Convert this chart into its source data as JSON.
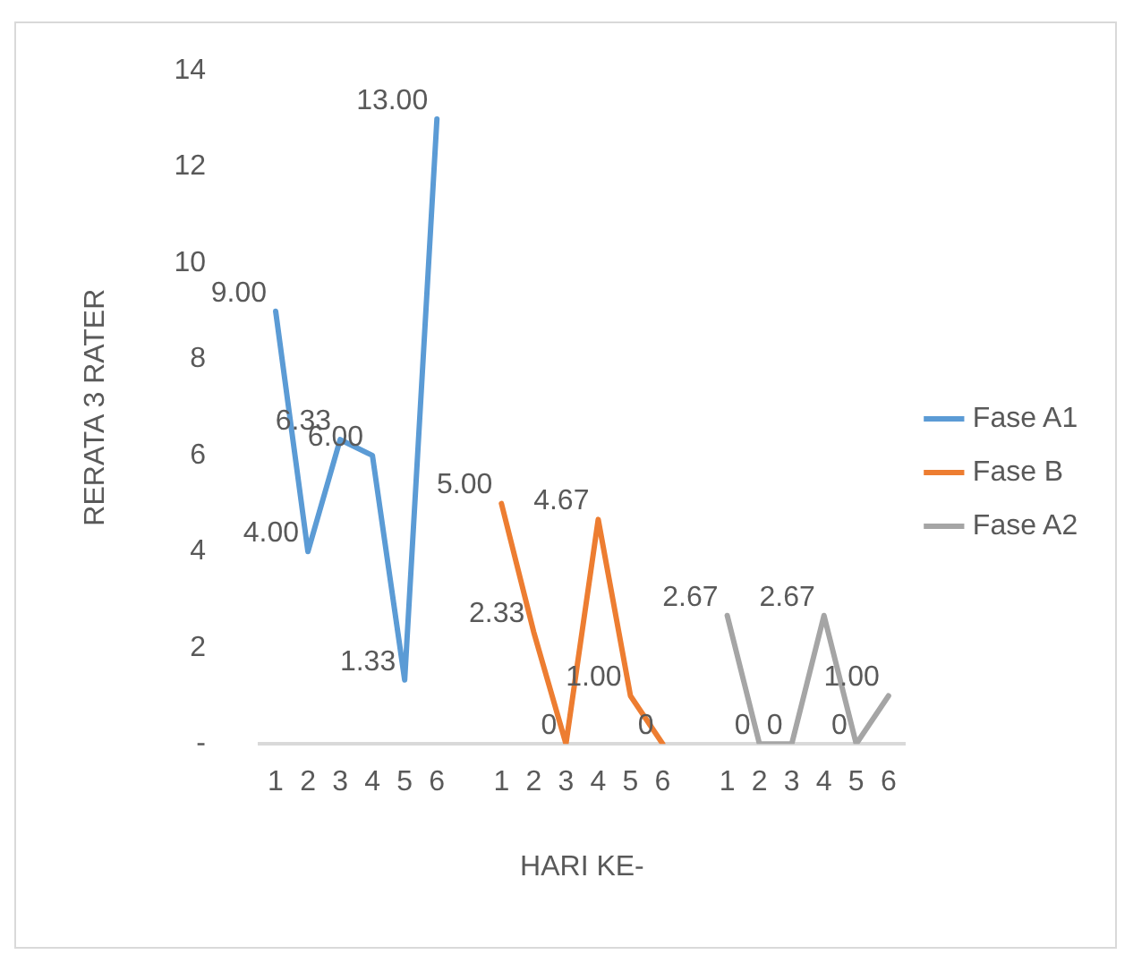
{
  "chart_data": {
    "type": "line",
    "xlabel": "HARI KE-",
    "ylabel": "RERATA 3 RATER",
    "categories": [
      "1",
      "2",
      "3",
      "4",
      "5",
      "6",
      null,
      "1",
      "2",
      "3",
      "4",
      "5",
      "6",
      null,
      "1",
      "2",
      "3",
      "4",
      "5",
      "6"
    ],
    "series": [
      {
        "name": "Fase A1",
        "color": "#5b9bd5",
        "values": [
          9,
          4,
          6.33,
          6,
          1.33,
          13,
          null,
          null,
          null,
          null,
          null,
          null,
          null,
          null,
          null,
          null,
          null,
          null,
          null,
          null
        ],
        "value_labels": [
          "9.00",
          "4.00",
          "6.33",
          "6.00",
          "1.33",
          "13.00",
          null,
          null,
          null,
          null,
          null,
          null,
          null,
          null,
          null,
          null,
          null,
          null,
          null,
          null
        ]
      },
      {
        "name": "Fase B",
        "color": "#ed7d31",
        "values": [
          null,
          null,
          null,
          null,
          null,
          null,
          null,
          5,
          2.33,
          0,
          4.67,
          1,
          0,
          null,
          null,
          null,
          null,
          null,
          null,
          null
        ],
        "value_labels": [
          null,
          null,
          null,
          null,
          null,
          null,
          null,
          "5.00",
          "2.33",
          "0",
          "4.67",
          "1.00",
          "0",
          null,
          null,
          null,
          null,
          null,
          null,
          null
        ]
      },
      {
        "name": "Fase A2",
        "color": "#a5a5a5",
        "values": [
          null,
          null,
          null,
          null,
          null,
          null,
          null,
          null,
          null,
          null,
          null,
          null,
          null,
          null,
          2.67,
          0,
          0,
          2.67,
          0,
          1
        ],
        "value_labels": [
          null,
          null,
          null,
          null,
          null,
          null,
          null,
          null,
          null,
          null,
          null,
          null,
          null,
          null,
          "2.67",
          "0",
          "0",
          "2.67",
          "0",
          "1.00"
        ]
      }
    ],
    "ylim": [
      0,
      14
    ],
    "yticks": [
      {
        "value": 0,
        "label": "-"
      },
      2,
      4,
      6,
      8,
      10,
      12,
      14
    ],
    "grid": false,
    "legend": "right",
    "marker": "none",
    "line_style": "solid"
  }
}
